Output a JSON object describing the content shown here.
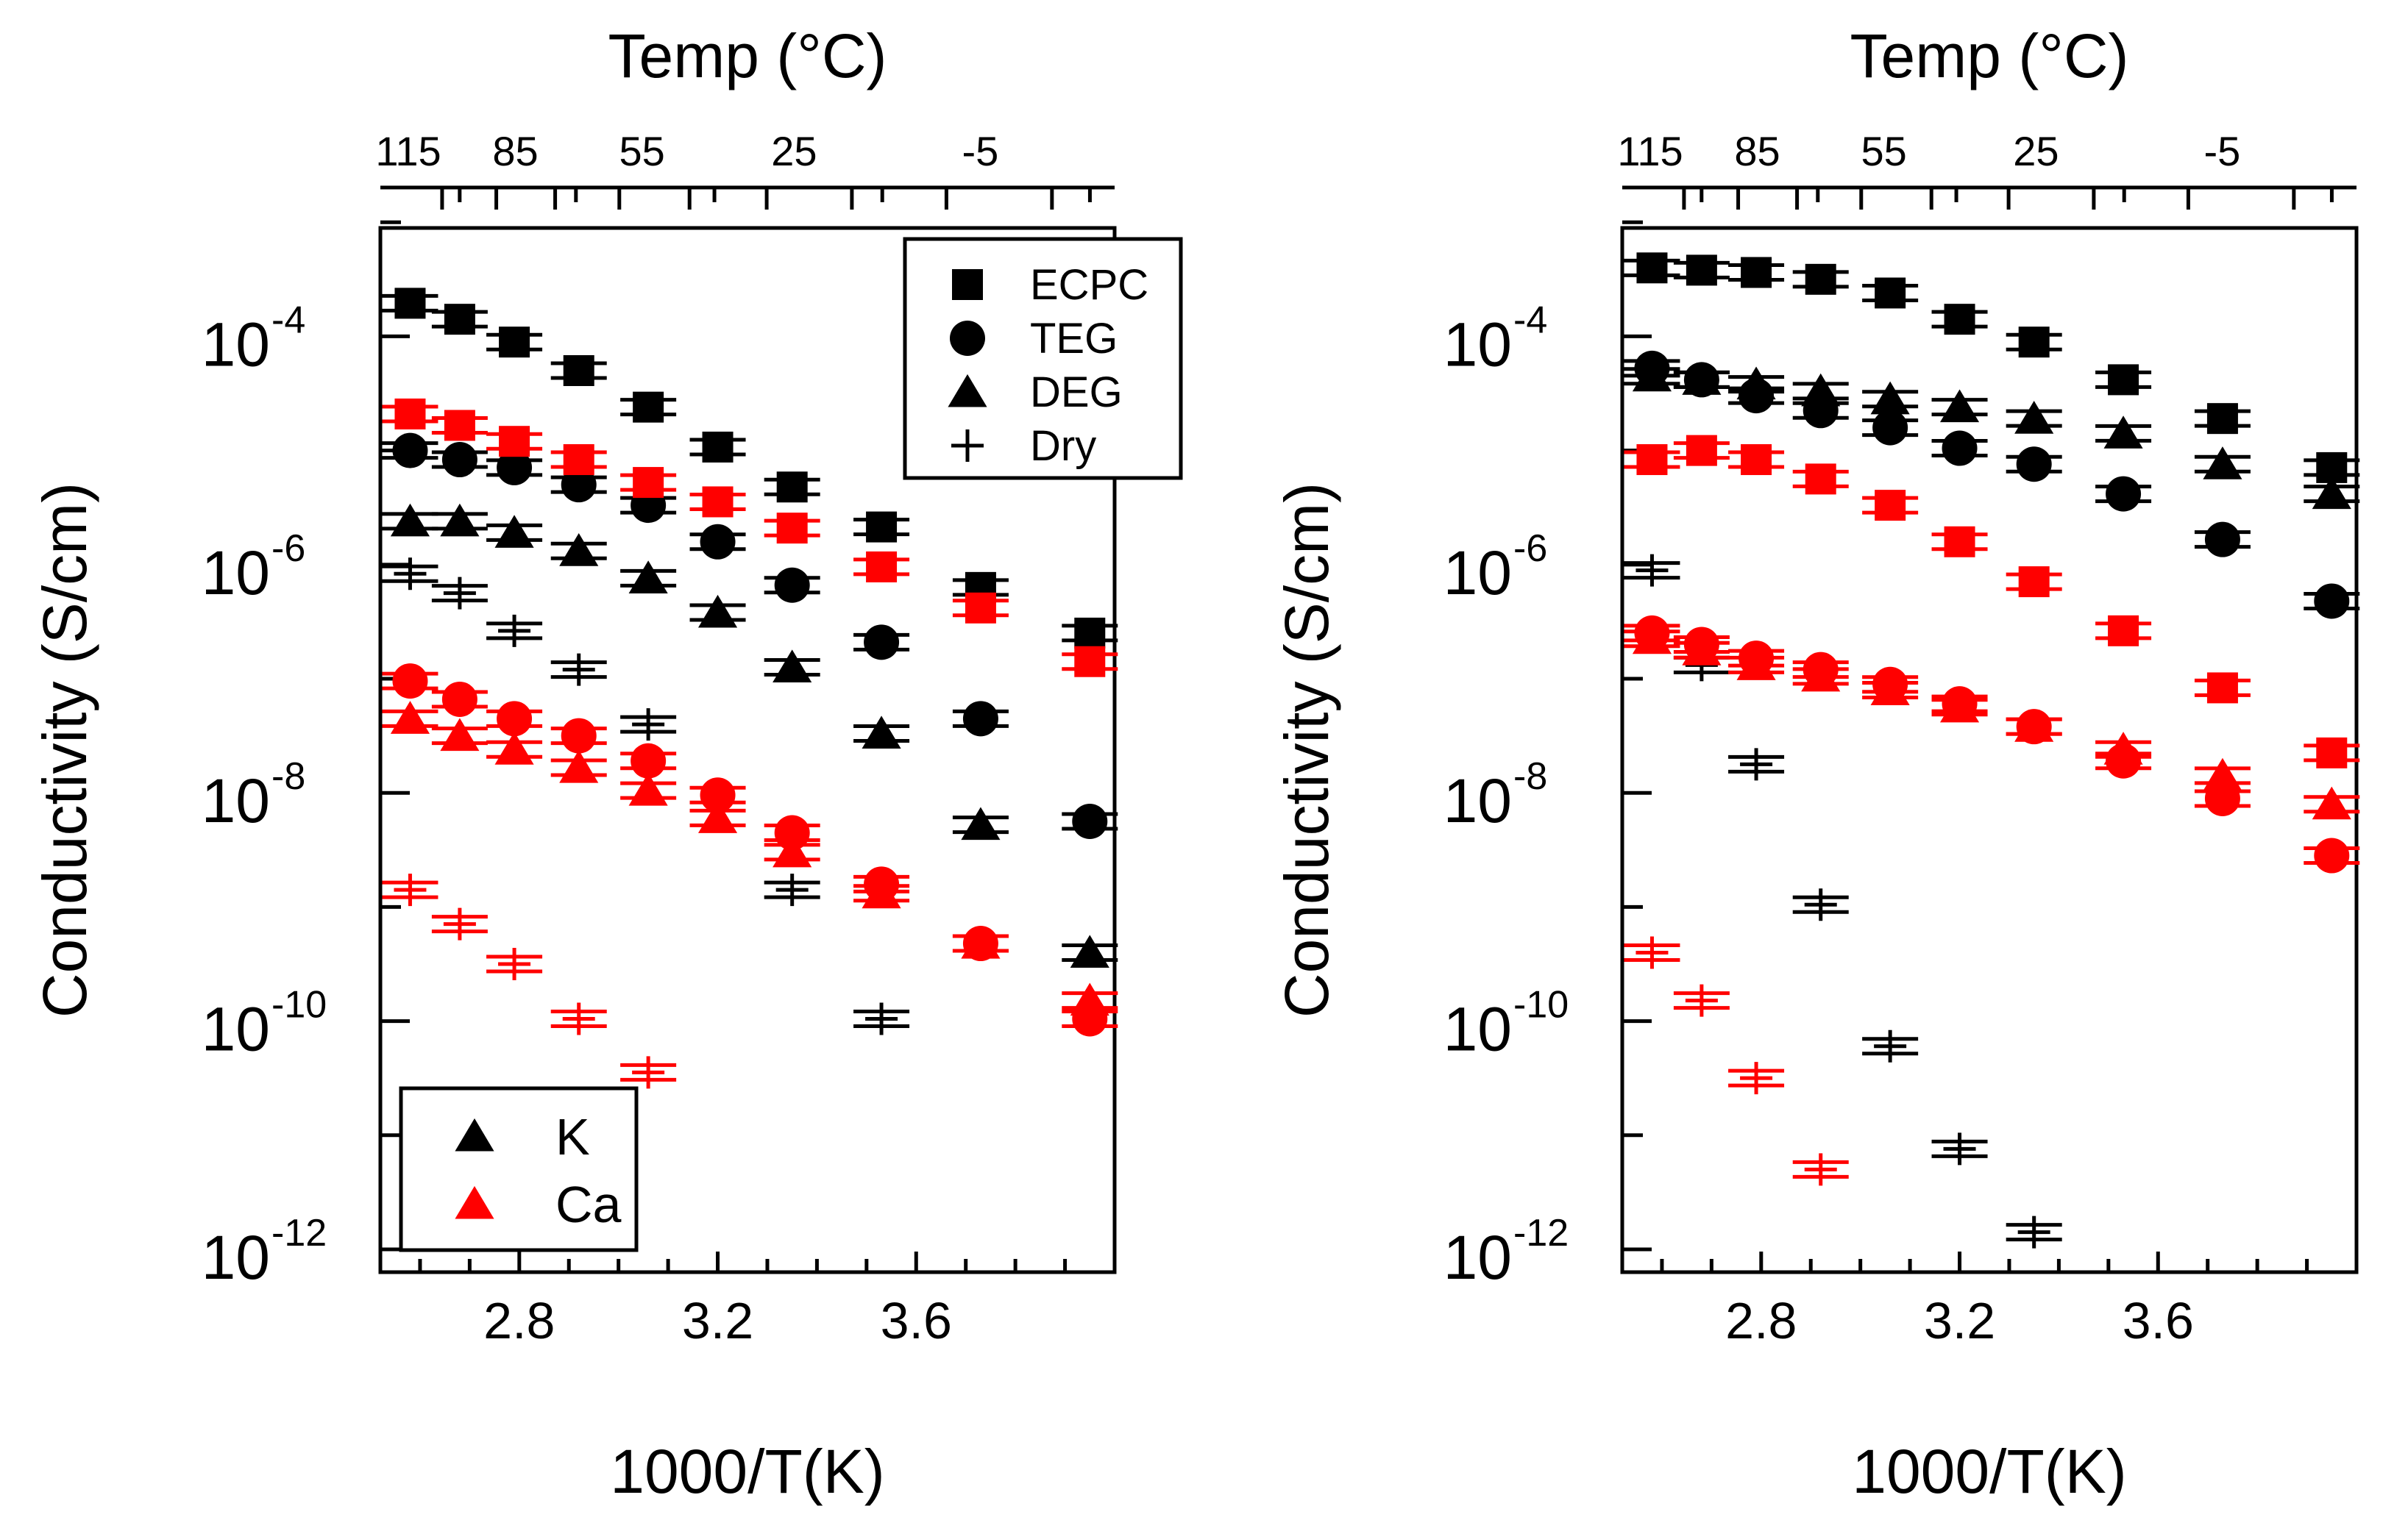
{
  "chart_data": [
    {
      "type": "scatter",
      "xlabel": "1000/T(K)",
      "top_xlabel": "Temp (°C)",
      "ylabel": "Conductivity (S/cm)",
      "y_scale": "log",
      "xlim": [
        2.52,
        4.0
      ],
      "ylim_exponent": [
        -12.2,
        -3.05
      ],
      "x_ticks": [
        2.8,
        3.2,
        3.6
      ],
      "x_tick_labels": [
        "2.8",
        "3.2",
        "3.6"
      ],
      "top_ticks": [
        115,
        85,
        55,
        25,
        -5
      ],
      "top_tick_labels": [
        "115",
        "85",
        "55",
        "25",
        "-5"
      ],
      "y_ticks": [
        -4,
        -6,
        -8,
        -10,
        -12
      ],
      "y_tick_base": "10",
      "y_tick_exponents": [
        "-4",
        "-6",
        "-8",
        "-10",
        "-12"
      ],
      "legend_series": {
        "placement": "top-right",
        "entries": [
          {
            "marker": "square",
            "label": "ECPC"
          },
          {
            "marker": "circle",
            "label": "TEG"
          },
          {
            "marker": "triangle",
            "label": "DEG"
          },
          {
            "marker": "plus",
            "label": "Dry"
          }
        ]
      },
      "legend_ion": {
        "placement": "bottom-left",
        "entries": [
          {
            "marker": "triangle",
            "color": "#000000",
            "label": "K"
          },
          {
            "marker": "triangle",
            "color": "#ff0000",
            "label": "Ca"
          }
        ]
      },
      "series": [
        {
          "marker": "square",
          "color": "#000000",
          "points": [
            [
              2.58,
              -3.71
            ],
            [
              2.68,
              -3.85
            ],
            [
              2.79,
              -4.05
            ],
            [
              2.92,
              -4.3
            ],
            [
              3.06,
              -4.62
            ],
            [
              3.2,
              -4.97
            ],
            [
              3.35,
              -5.32
            ],
            [
              3.53,
              -5.67
            ],
            [
              3.73,
              -6.2
            ],
            [
              3.95,
              -6.6
            ]
          ]
        },
        {
          "marker": "circle",
          "color": "#000000",
          "points": [
            [
              2.58,
              -5.0
            ],
            [
              2.68,
              -5.08
            ],
            [
              2.79,
              -5.15
            ],
            [
              2.92,
              -5.3
            ],
            [
              3.06,
              -5.48
            ],
            [
              3.2,
              -5.8
            ],
            [
              3.35,
              -6.18
            ],
            [
              3.53,
              -6.68
            ],
            [
              3.73,
              -7.35
            ],
            [
              3.95,
              -8.25
            ]
          ]
        },
        {
          "marker": "triangle",
          "color": "#000000",
          "points": [
            [
              2.58,
              -5.62
            ],
            [
              2.68,
              -5.62
            ],
            [
              2.79,
              -5.72
            ],
            [
              2.92,
              -5.88
            ],
            [
              3.06,
              -6.12
            ],
            [
              3.2,
              -6.42
            ],
            [
              3.35,
              -6.9
            ],
            [
              3.53,
              -7.48
            ],
            [
              3.73,
              -8.28
            ],
            [
              3.95,
              -9.4
            ]
          ]
        },
        {
          "marker": "plus",
          "color": "#000000",
          "points": [
            [
              2.58,
              -6.08
            ],
            [
              2.68,
              -6.25
            ],
            [
              2.79,
              -6.58
            ],
            [
              2.92,
              -6.92
            ],
            [
              3.06,
              -7.4
            ],
            [
              3.35,
              -8.85
            ],
            [
              3.53,
              -9.98
            ]
          ]
        },
        {
          "marker": "square",
          "color": "#ff0000",
          "points": [
            [
              2.58,
              -4.68
            ],
            [
              2.68,
              -4.78
            ],
            [
              2.79,
              -4.92
            ],
            [
              2.92,
              -5.08
            ],
            [
              3.06,
              -5.28
            ],
            [
              3.2,
              -5.45
            ],
            [
              3.35,
              -5.68
            ],
            [
              3.53,
              -6.02
            ],
            [
              3.73,
              -6.38
            ],
            [
              3.95,
              -6.85
            ]
          ]
        },
        {
          "marker": "circle",
          "color": "#ff0000",
          "points": [
            [
              2.58,
              -7.02
            ],
            [
              2.68,
              -7.18
            ],
            [
              2.79,
              -7.35
            ],
            [
              2.92,
              -7.5
            ],
            [
              3.06,
              -7.72
            ],
            [
              3.2,
              -8.02
            ],
            [
              3.35,
              -8.35
            ],
            [
              3.53,
              -8.8
            ],
            [
              3.73,
              -9.32
            ],
            [
              3.95,
              -9.98
            ]
          ]
        },
        {
          "marker": "triangle",
          "color": "#ff0000",
          "points": [
            [
              2.58,
              -7.35
            ],
            [
              2.68,
              -7.5
            ],
            [
              2.79,
              -7.62
            ],
            [
              2.92,
              -7.78
            ],
            [
              3.06,
              -7.98
            ],
            [
              3.2,
              -8.22
            ],
            [
              3.35,
              -8.52
            ],
            [
              3.53,
              -8.88
            ],
            [
              3.73,
              -9.32
            ],
            [
              3.95,
              -9.82
            ]
          ]
        },
        {
          "marker": "plus",
          "color": "#ff0000",
          "points": [
            [
              2.58,
              -8.85
            ],
            [
              2.68,
              -9.15
            ],
            [
              2.79,
              -9.5
            ],
            [
              2.92,
              -9.98
            ],
            [
              3.06,
              -10.45
            ]
          ]
        }
      ]
    },
    {
      "type": "scatter",
      "xlabel": "1000/T(K)",
      "top_xlabel": "Temp (°C)",
      "ylabel": "Conductivity (S/cm)",
      "y_scale": "log",
      "xlim": [
        2.52,
        4.0
      ],
      "ylim_exponent": [
        -12.2,
        -3.05
      ],
      "x_ticks": [
        2.8,
        3.2,
        3.6
      ],
      "x_tick_labels": [
        "2.8",
        "3.2",
        "3.6"
      ],
      "top_ticks": [
        115,
        85,
        55,
        25,
        -5
      ],
      "top_tick_labels": [
        "115",
        "85",
        "55",
        "25",
        "-5"
      ],
      "y_ticks": [
        -4,
        -6,
        -8,
        -10,
        -12
      ],
      "y_tick_base": "10",
      "y_tick_exponents": [
        "-4",
        "-6",
        "-8",
        "-10",
        "-12"
      ],
      "series": [
        {
          "marker": "square",
          "color": "#000000",
          "points": [
            [
              2.58,
              -3.4
            ],
            [
              2.68,
              -3.42
            ],
            [
              2.79,
              -3.44
            ],
            [
              2.92,
              -3.5
            ],
            [
              3.06,
              -3.62
            ],
            [
              3.2,
              -3.85
            ],
            [
              3.35,
              -4.05
            ],
            [
              3.53,
              -4.38
            ],
            [
              3.73,
              -4.72
            ],
            [
              3.95,
              -5.15
            ]
          ]
        },
        {
          "marker": "circle",
          "color": "#000000",
          "points": [
            [
              2.58,
              -4.28
            ],
            [
              2.68,
              -4.38
            ],
            [
              2.79,
              -4.52
            ],
            [
              2.92,
              -4.65
            ],
            [
              3.06,
              -4.8
            ],
            [
              3.2,
              -4.98
            ],
            [
              3.35,
              -5.12
            ],
            [
              3.53,
              -5.38
            ],
            [
              3.73,
              -5.78
            ],
            [
              3.95,
              -6.32
            ]
          ]
        },
        {
          "marker": "triangle",
          "color": "#000000",
          "points": [
            [
              2.58,
              -4.35
            ],
            [
              2.68,
              -4.38
            ],
            [
              2.79,
              -4.42
            ],
            [
              2.92,
              -4.48
            ],
            [
              3.06,
              -4.55
            ],
            [
              3.2,
              -4.62
            ],
            [
              3.35,
              -4.72
            ],
            [
              3.53,
              -4.85
            ],
            [
              3.73,
              -5.12
            ],
            [
              3.95,
              -5.38
            ]
          ]
        },
        {
          "marker": "plus",
          "color": "#000000",
          "points": [
            [
              2.58,
              -6.05
            ],
            [
              2.68,
              -6.88
            ],
            [
              2.79,
              -7.75
            ],
            [
              2.92,
              -8.98
            ],
            [
              3.06,
              -10.22
            ],
            [
              3.2,
              -11.12
            ],
            [
              3.35,
              -11.85
            ]
          ]
        },
        {
          "marker": "square",
          "color": "#ff0000",
          "points": [
            [
              2.58,
              -5.08
            ],
            [
              2.68,
              -5.0
            ],
            [
              2.79,
              -5.08
            ],
            [
              2.92,
              -5.25
            ],
            [
              3.06,
              -5.48
            ],
            [
              3.2,
              -5.8
            ],
            [
              3.35,
              -6.15
            ],
            [
              3.53,
              -6.58
            ],
            [
              3.73,
              -7.08
            ],
            [
              3.95,
              -7.65
            ]
          ]
        },
        {
          "marker": "circle",
          "color": "#ff0000",
          "points": [
            [
              2.58,
              -6.6
            ],
            [
              2.68,
              -6.7
            ],
            [
              2.79,
              -6.82
            ],
            [
              2.92,
              -6.92
            ],
            [
              3.06,
              -7.05
            ],
            [
              3.2,
              -7.22
            ],
            [
              3.35,
              -7.42
            ],
            [
              3.53,
              -7.72
            ],
            [
              3.73,
              -8.05
            ],
            [
              3.95,
              -8.55
            ]
          ]
        },
        {
          "marker": "triangle",
          "color": "#ff0000",
          "points": [
            [
              2.58,
              -6.65
            ],
            [
              2.68,
              -6.75
            ],
            [
              2.79,
              -6.88
            ],
            [
              2.92,
              -6.98
            ],
            [
              3.06,
              -7.1
            ],
            [
              3.2,
              -7.25
            ],
            [
              3.35,
              -7.42
            ],
            [
              3.53,
              -7.62
            ],
            [
              3.73,
              -7.85
            ],
            [
              3.95,
              -8.1
            ]
          ]
        },
        {
          "marker": "plus",
          "color": "#ff0000",
          "points": [
            [
              2.58,
              -9.4
            ],
            [
              2.68,
              -9.82
            ],
            [
              2.79,
              -10.5
            ],
            [
              2.92,
              -11.3
            ]
          ]
        }
      ]
    }
  ]
}
